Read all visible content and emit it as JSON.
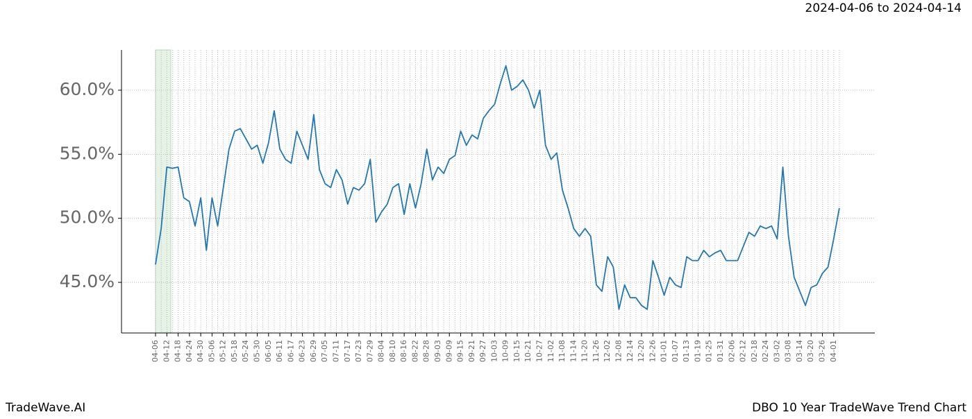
{
  "chart_data": {
    "type": "line",
    "period": "2024-04-06 to 2024-04-14",
    "brand": "TradeWave.AI",
    "title": "DBO 10 Year TradeWave Trend Chart",
    "categories": [
      "04-06",
      null,
      "04-12",
      null,
      "04-18",
      null,
      "04-24",
      null,
      "04-30",
      null,
      "05-06",
      null,
      "05-12",
      null,
      "05-18",
      null,
      "05-24",
      null,
      "05-30",
      null,
      "06-05",
      null,
      "06-11",
      null,
      "06-17",
      null,
      "06-23",
      null,
      "06-29",
      null,
      "07-05",
      null,
      "07-11",
      null,
      "07-17",
      null,
      "07-23",
      null,
      "07-29",
      null,
      "08-04",
      null,
      "08-10",
      null,
      "08-16",
      null,
      "08-22",
      null,
      "08-28",
      null,
      "09-03",
      null,
      "09-09",
      null,
      "09-15",
      null,
      "09-21",
      null,
      "09-27",
      null,
      "10-03",
      null,
      "10-09",
      null,
      "10-15",
      null,
      "10-21",
      null,
      "10-27",
      null,
      "11-02",
      null,
      "11-08",
      null,
      "11-14",
      null,
      "11-20",
      null,
      "11-26",
      null,
      "12-02",
      null,
      "12-08",
      null,
      "12-14",
      null,
      "12-20",
      null,
      "12-26",
      null,
      "01-01",
      null,
      "01-07",
      null,
      "01-13",
      null,
      "01-19",
      null,
      "01-25",
      null,
      "01-31",
      null,
      "02-06",
      null,
      "02-12",
      null,
      "02-18",
      null,
      "02-24",
      null,
      "03-02",
      null,
      "03-08",
      null,
      "03-14",
      null,
      "03-20",
      null,
      "03-26",
      null,
      "04-01",
      null
    ],
    "series": [
      {
        "color": "#1f77b4",
        "values": [
          46.4,
          49.2,
          54.0,
          53.9,
          54.0,
          51.6,
          51.3,
          49.4,
          51.6,
          47.5,
          51.6,
          49.4,
          52.4,
          55.4,
          56.8,
          57.0,
          56.2,
          55.4,
          55.7,
          54.3,
          55.9,
          58.4,
          55.4,
          54.6,
          54.3,
          56.8,
          55.7,
          54.6,
          58.1,
          53.8,
          52.7,
          52.4,
          53.8,
          53.0,
          51.1,
          52.4,
          52.2,
          52.7,
          54.6,
          49.7,
          50.5,
          51.1,
          52.4,
          52.7,
          50.3,
          52.7,
          50.8,
          52.7,
          55.4,
          53.0,
          54.0,
          53.5,
          54.6,
          54.9,
          56.8,
          55.7,
          56.5,
          56.2,
          57.8,
          58.4,
          58.9,
          60.5,
          61.9,
          60.0,
          60.3,
          60.8,
          60.0,
          58.6,
          60.0,
          55.7,
          54.6,
          55.1,
          52.2,
          50.8,
          49.2,
          48.6,
          49.2,
          48.6,
          44.8,
          44.3,
          47.0,
          46.2,
          42.9,
          44.8,
          43.8,
          43.8,
          43.2,
          42.9,
          46.7,
          45.4,
          44.0,
          45.4,
          44.8,
          44.6,
          47.0,
          46.7,
          46.7,
          47.5,
          47.0,
          47.3,
          47.5,
          46.7,
          46.7,
          46.7,
          47.8,
          48.9,
          48.6,
          49.4,
          49.2,
          49.4,
          48.4,
          54.0,
          48.6,
          45.4,
          44.3,
          43.2,
          44.6,
          44.8,
          45.7,
          46.2,
          48.4,
          50.8
        ]
      }
    ],
    "ylim": [
      41.05,
      63.14
    ],
    "yticks": [
      {
        "value": 45,
        "label": "45.0%"
      },
      {
        "value": 50,
        "label": "50.0%"
      },
      {
        "value": 55,
        "label": "55.0%"
      },
      {
        "value": 60,
        "label": "60.0%"
      }
    ],
    "grid": true
  }
}
